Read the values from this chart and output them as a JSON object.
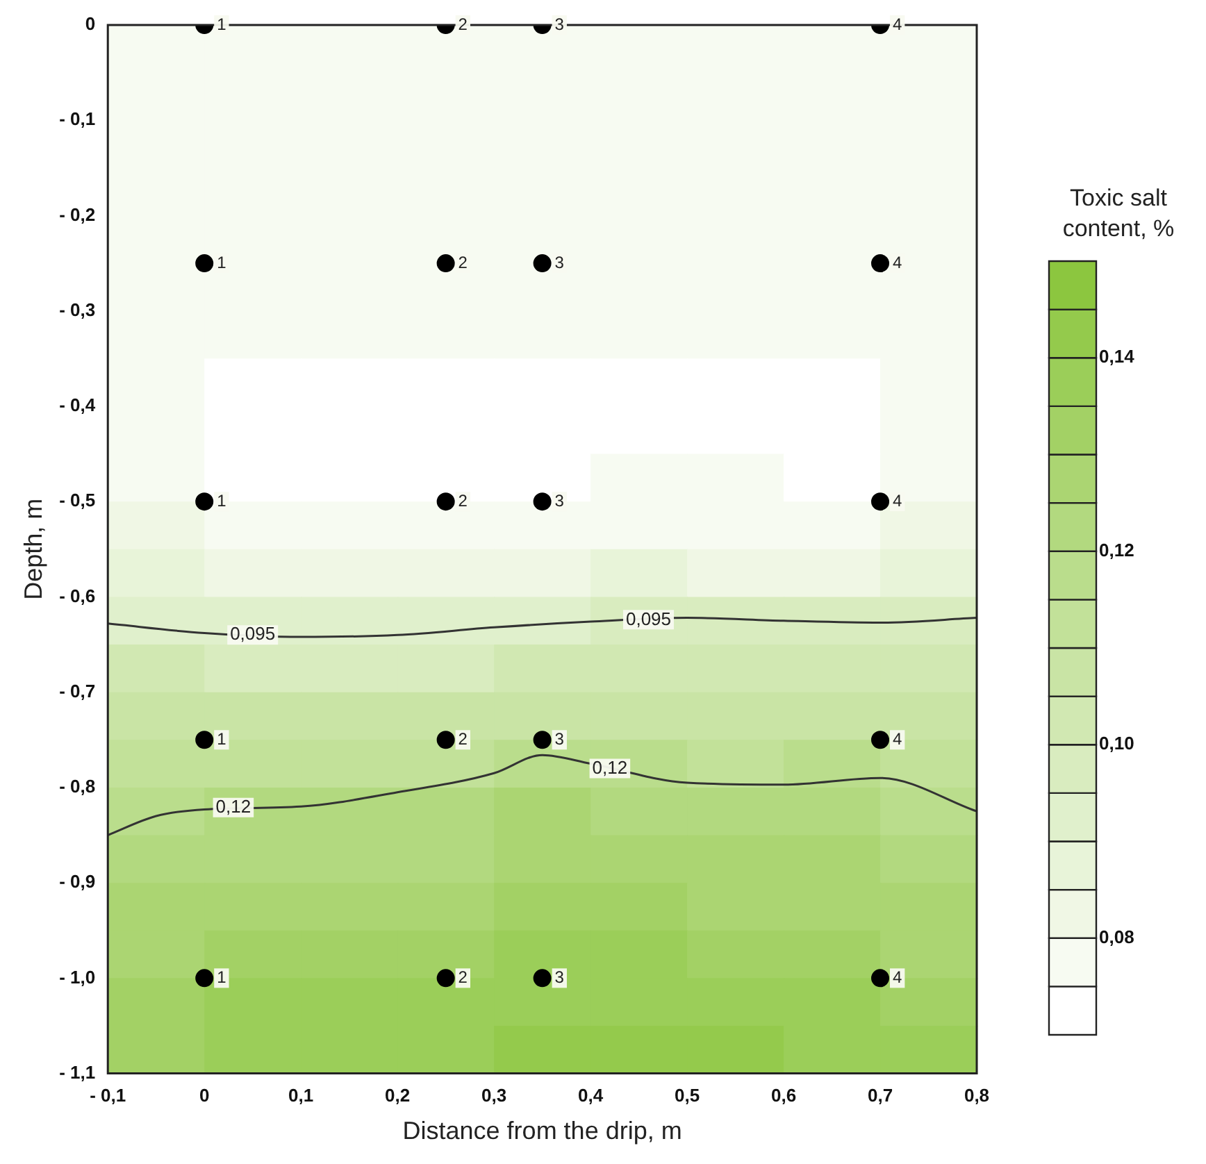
{
  "chart_data": {
    "type": "heatmap",
    "xlabel": "Distance from the drip, m",
    "ylabel": "Depth, m",
    "clabel": "Toxic salt content, %",
    "x": [
      -0.05,
      0.05,
      0.15,
      0.25,
      0.35,
      0.45,
      0.55,
      0.65,
      0.75
    ],
    "cells": [
      [
        0.078,
        0.078,
        0.078,
        0.078,
        0.078,
        0.078,
        0.078,
        0.078,
        0.078
      ],
      [
        0.078,
        0.078,
        0.078,
        0.078,
        0.078,
        0.078,
        0.078,
        0.078,
        0.078
      ],
      [
        0.078,
        0.078,
        0.078,
        0.078,
        0.078,
        0.078,
        0.078,
        0.078,
        0.078
      ],
      [
        0.078,
        0.078,
        0.078,
        0.078,
        0.078,
        0.078,
        0.078,
        0.078,
        0.078
      ],
      [
        0.078,
        0.078,
        0.078,
        0.078,
        0.078,
        0.078,
        0.078,
        0.078,
        0.078
      ],
      [
        0.078,
        0.078,
        0.078,
        0.078,
        0.078,
        0.078,
        0.078,
        0.078,
        0.078
      ],
      [
        0.078,
        0.078,
        0.078,
        0.078,
        0.078,
        0.078,
        0.078,
        0.078,
        0.078
      ],
      [
        0.078,
        0.073,
        0.073,
        0.073,
        0.073,
        0.073,
        0.073,
        0.073,
        0.078
      ],
      [
        0.078,
        0.073,
        0.073,
        0.073,
        0.073,
        0.073,
        0.073,
        0.073,
        0.078
      ],
      [
        0.078,
        0.073,
        0.073,
        0.073,
        0.073,
        0.078,
        0.078,
        0.073,
        0.078
      ],
      [
        0.083,
        0.078,
        0.078,
        0.078,
        0.078,
        0.078,
        0.078,
        0.078,
        0.083
      ],
      [
        0.088,
        0.083,
        0.083,
        0.083,
        0.083,
        0.088,
        0.083,
        0.083,
        0.088
      ],
      [
        0.093,
        0.093,
        0.093,
        0.093,
        0.093,
        0.098,
        0.098,
        0.098,
        0.098
      ],
      [
        0.103,
        0.098,
        0.098,
        0.098,
        0.103,
        0.103,
        0.103,
        0.103,
        0.103
      ],
      [
        0.108,
        0.108,
        0.108,
        0.108,
        0.108,
        0.108,
        0.108,
        0.108,
        0.108
      ],
      [
        0.113,
        0.113,
        0.113,
        0.113,
        0.118,
        0.118,
        0.113,
        0.118,
        0.113
      ],
      [
        0.118,
        0.123,
        0.123,
        0.123,
        0.128,
        0.123,
        0.123,
        0.123,
        0.118
      ],
      [
        0.123,
        0.123,
        0.123,
        0.123,
        0.128,
        0.128,
        0.128,
        0.128,
        0.123
      ],
      [
        0.128,
        0.128,
        0.128,
        0.128,
        0.133,
        0.133,
        0.128,
        0.128,
        0.128
      ],
      [
        0.128,
        0.133,
        0.133,
        0.133,
        0.138,
        0.138,
        0.133,
        0.133,
        0.128
      ],
      [
        0.133,
        0.138,
        0.138,
        0.138,
        0.138,
        0.138,
        0.138,
        0.138,
        0.133
      ],
      [
        0.133,
        0.138,
        0.138,
        0.138,
        0.143,
        0.143,
        0.143,
        0.138,
        0.138
      ]
    ],
    "clim": [
      0.07,
      0.15
    ],
    "cticks": [
      {
        "value": 0.08,
        "label": "0,08"
      },
      {
        "value": 0.1,
        "label": "0,10"
      },
      {
        "value": 0.12,
        "label": "0,12"
      },
      {
        "value": 0.14,
        "label": "0,14"
      }
    ],
    "xlim": [
      -0.1,
      0.8
    ],
    "xticks": [
      {
        "value": -0.1,
        "label": "- 0,1"
      },
      0,
      {
        "value": 0.1,
        "label": "0,1"
      },
      {
        "value": 0.2,
        "label": "0,2"
      },
      {
        "value": 0.3,
        "label": "0,3"
      },
      {
        "value": 0.4,
        "label": "0,4"
      },
      {
        "value": 0.5,
        "label": "0,5"
      },
      {
        "value": 0.6,
        "label": "0,6"
      },
      {
        "value": 0.7,
        "label": "0,7"
      },
      {
        "value": 0.8,
        "label": "0,8"
      }
    ],
    "ylim": [
      -1.1,
      0
    ],
    "yticks": [
      0,
      {
        "value": -0.1,
        "label": "- 0,1"
      },
      {
        "value": -0.2,
        "label": "- 0,2"
      },
      {
        "value": -0.3,
        "label": "- 0,3"
      },
      {
        "value": -0.4,
        "label": "- 0,4"
      },
      {
        "value": -0.5,
        "label": "- 0,5"
      },
      {
        "value": -0.6,
        "label": "- 0,6"
      },
      {
        "value": -0.7,
        "label": "- 0,7"
      },
      {
        "value": -0.8,
        "label": "- 0,8"
      },
      {
        "value": -0.9,
        "label": "- 0,9"
      },
      {
        "value": -1.0,
        "label": "- 1,0"
      },
      {
        "value": -1.1,
        "label": "- 1,1"
      }
    ],
    "series": [
      {
        "type": "line",
        "color": "#333333",
        "x": [
          -0.1,
          0,
          0.1,
          0.2,
          0.3,
          0.4,
          0.5,
          0.6,
          0.7,
          0.8
        ],
        "values": [
          -0.628,
          -0.638,
          -0.642,
          -0.64,
          -0.632,
          -0.626,
          -0.622,
          -0.625,
          -0.627,
          -0.622
        ]
      },
      {
        "type": "line",
        "color": "#333333",
        "x": [
          -0.1,
          -0.05,
          0,
          0.1,
          0.2,
          0.3,
          0.35,
          0.4,
          0.5,
          0.6,
          0.7,
          0.8
        ],
        "values": [
          -0.85,
          -0.83,
          -0.823,
          -0.82,
          -0.805,
          -0.785,
          -0.766,
          -0.775,
          -0.795,
          -0.797,
          -0.79,
          -0.825
        ]
      },
      {
        "type": "scatter",
        "color": "#000000",
        "marker": "circle",
        "x": [
          0,
          0.25,
          0.35,
          0.7,
          0,
          0.25,
          0.35,
          0.7,
          0,
          0.25,
          0.35,
          0.7,
          0,
          0.25,
          0.35,
          0.7,
          0,
          0.25,
          0.35,
          0.7
        ],
        "values": [
          0,
          0,
          0,
          0,
          -0.25,
          -0.25,
          -0.25,
          -0.25,
          -0.5,
          -0.5,
          -0.5,
          -0.5,
          -0.75,
          -0.75,
          -0.75,
          -0.75,
          -1.0,
          -1.0,
          -1.0,
          -1.0
        ]
      }
    ],
    "annotations": [
      {
        "text": "0,095",
        "x": 0.05,
        "y": -0.64
      },
      {
        "text": "0,095",
        "x": 0.46,
        "y": -0.624
      },
      {
        "text": "0,12",
        "x": 0.03,
        "y": -0.821
      },
      {
        "text": "0,12",
        "x": 0.42,
        "y": -0.78
      },
      {
        "text": "1",
        "x": 0,
        "y": 0
      },
      {
        "text": "2",
        "x": 0.25,
        "y": 0
      },
      {
        "text": "3",
        "x": 0.35,
        "y": 0
      },
      {
        "text": "4",
        "x": 0.7,
        "y": 0
      },
      {
        "text": "1",
        "x": 0,
        "y": -0.25
      },
      {
        "text": "2",
        "x": 0.25,
        "y": -0.25
      },
      {
        "text": "3",
        "x": 0.35,
        "y": -0.25
      },
      {
        "text": "4",
        "x": 0.7,
        "y": -0.25
      },
      {
        "text": "1",
        "x": 0,
        "y": -0.5
      },
      {
        "text": "2",
        "x": 0.25,
        "y": -0.5
      },
      {
        "text": "3",
        "x": 0.35,
        "y": -0.5
      },
      {
        "text": "4",
        "x": 0.7,
        "y": -0.5
      },
      {
        "text": "1",
        "x": 0,
        "y": -0.75
      },
      {
        "text": "2",
        "x": 0.25,
        "y": -0.75
      },
      {
        "text": "3",
        "x": 0.35,
        "y": -0.75
      },
      {
        "text": "4",
        "x": 0.7,
        "y": -0.75
      },
      {
        "text": "1",
        "x": 0,
        "y": -1.0
      },
      {
        "text": "2",
        "x": 0.25,
        "y": -1.0
      },
      {
        "text": "3",
        "x": 0.35,
        "y": -1.0
      },
      {
        "text": "4",
        "x": 0.7,
        "y": -1.0
      }
    ],
    "grid": false,
    "legend": false
  }
}
